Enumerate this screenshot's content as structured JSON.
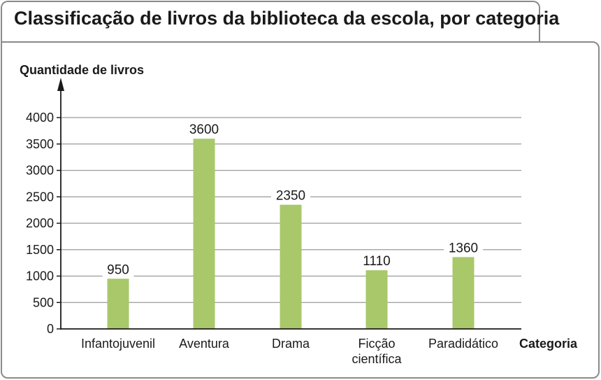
{
  "chart_data": {
    "type": "bar",
    "title": "Classificação de livros da biblioteca da escola, por categoria",
    "ylabel": "Quantidade de livros",
    "xlabel": "Categoria",
    "categories": [
      [
        "Infantojuvenil"
      ],
      [
        "Aventura"
      ],
      [
        "Drama"
      ],
      [
        "Ficção",
        "científica"
      ],
      [
        "Paradidático"
      ]
    ],
    "values": [
      950,
      3600,
      2350,
      1110,
      1360
    ],
    "value_labels": [
      "950",
      "3600",
      "2350",
      "1110",
      "1360"
    ],
    "yticks": [
      0,
      500,
      1000,
      1500,
      2000,
      2500,
      3000,
      3500,
      4000
    ],
    "ylim": [
      0,
      4000
    ],
    "grid": true,
    "bar_color": "#a8c86a",
    "grid_color": "#9a9a9a"
  }
}
